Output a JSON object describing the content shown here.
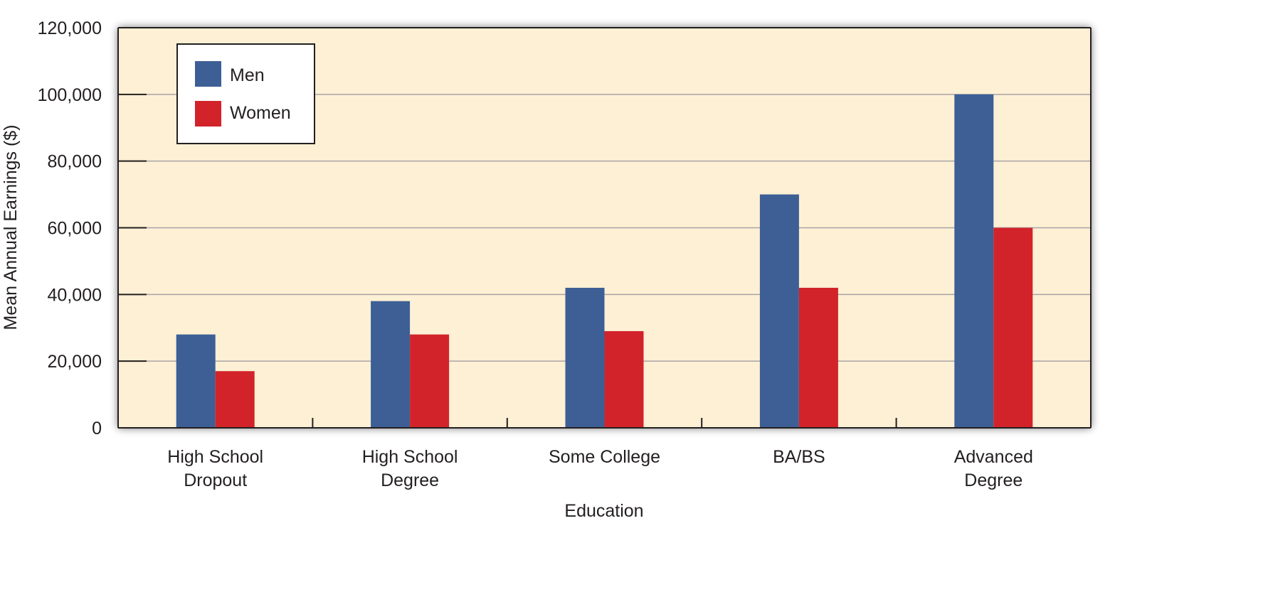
{
  "chart_data": {
    "type": "bar",
    "title": "",
    "xlabel": "Education",
    "ylabel": "Mean Annual Earnings ($)",
    "ylim": [
      0,
      120000
    ],
    "yticks": [
      0,
      20000,
      40000,
      60000,
      80000,
      100000,
      120000
    ],
    "ytick_labels": [
      "0",
      "20,000",
      "40,000",
      "60,000",
      "80,000",
      "100,000",
      "120,000"
    ],
    "categories": [
      [
        "High School",
        "Dropout"
      ],
      [
        "High School",
        "Degree"
      ],
      [
        "Some College"
      ],
      [
        "BA/BS"
      ],
      [
        "Advanced",
        "Degree"
      ]
    ],
    "series": [
      {
        "name": "Men",
        "color": "#3d5f96",
        "values": [
          28000,
          38000,
          42000,
          70000,
          100000
        ]
      },
      {
        "name": "Women",
        "color": "#d2232a",
        "values": [
          17000,
          28000,
          29000,
          42000,
          60000
        ]
      }
    ],
    "grid": true,
    "legend": "top-left",
    "background": "#fdf0d4"
  }
}
